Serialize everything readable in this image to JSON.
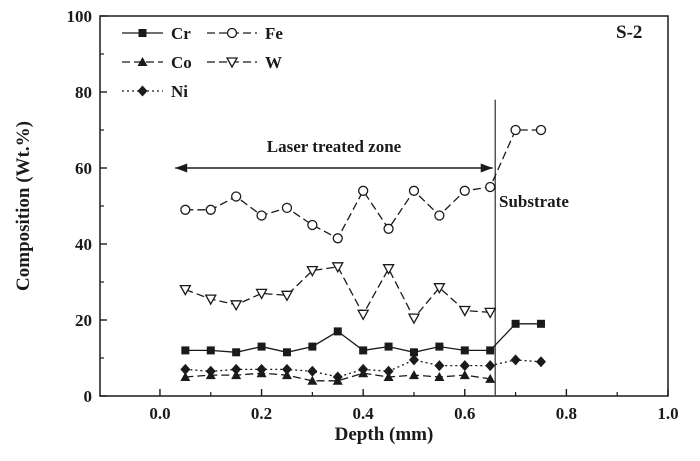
{
  "figure": {
    "panel_label": "S-2",
    "xlabel": "Depth (mm)",
    "ylabel": "Composition (Wt.%)",
    "laser_zone_label": "Laser treated zone",
    "substrate_label": "Substrate"
  },
  "chart_data": {
    "type": "line",
    "title": "S-2",
    "xlabel": "Depth (mm)",
    "ylabel": "Composition (Wt.%)",
    "xlim": [
      -0.118,
      1.0
    ],
    "ylim": [
      0,
      100
    ],
    "xticks": [
      0.0,
      0.2,
      0.4,
      0.6,
      0.8,
      1.0
    ],
    "yticks": [
      0,
      20,
      40,
      60,
      80,
      100
    ],
    "xminor": [
      0.1,
      0.3,
      0.5,
      0.7,
      0.9
    ],
    "yminor": [
      10,
      30,
      50,
      70,
      90
    ],
    "grid": false,
    "legend_position": "top-left",
    "color": "#1a1a1a",
    "x": [
      0.05,
      0.1,
      0.15,
      0.2,
      0.25,
      0.3,
      0.35,
      0.4,
      0.45,
      0.5,
      0.55,
      0.6,
      0.65,
      0.7,
      0.75
    ],
    "series": [
      {
        "name": "Cr",
        "marker": "square-filled",
        "line": "solid",
        "values": [
          12,
          12,
          11.5,
          13,
          11.5,
          13,
          17,
          12,
          13,
          11.5,
          13,
          12,
          12,
          19,
          19
        ]
      },
      {
        "name": "Fe",
        "marker": "circle-open",
        "line": "dash",
        "values": [
          49,
          49,
          52.5,
          47.5,
          49.5,
          45,
          41.5,
          54,
          44,
          54,
          47.5,
          54,
          55,
          70,
          70
        ]
      },
      {
        "name": "Co",
        "marker": "triangle-up-filled",
        "line": "dash",
        "values": [
          5,
          5.5,
          5.5,
          6,
          5.5,
          4,
          4,
          6,
          5,
          5.5,
          5,
          5.5,
          4.5,
          null,
          null
        ]
      },
      {
        "name": "W",
        "marker": "triangle-down-open",
        "line": "dash",
        "values": [
          28,
          25.5,
          24,
          27,
          26.5,
          33,
          34,
          21.5,
          33.5,
          20.5,
          28.5,
          22.5,
          22,
          null,
          null
        ]
      },
      {
        "name": "Ni",
        "marker": "diamond-filled",
        "line": "dot",
        "values": [
          7,
          6.5,
          7,
          7,
          7,
          6.5,
          5,
          7,
          6.5,
          9.5,
          8,
          8,
          8,
          9.5,
          9
        ]
      }
    ],
    "annotations": {
      "boundary_x": 0.66,
      "boundary_y_top": 78,
      "arrow_y": 60,
      "arrow_x_start": 0.03,
      "arrow_x_end": 0.655,
      "laser_zone_label": "Laser treated zone",
      "substrate_label": "Substrate",
      "panel_label": "S-2"
    }
  }
}
